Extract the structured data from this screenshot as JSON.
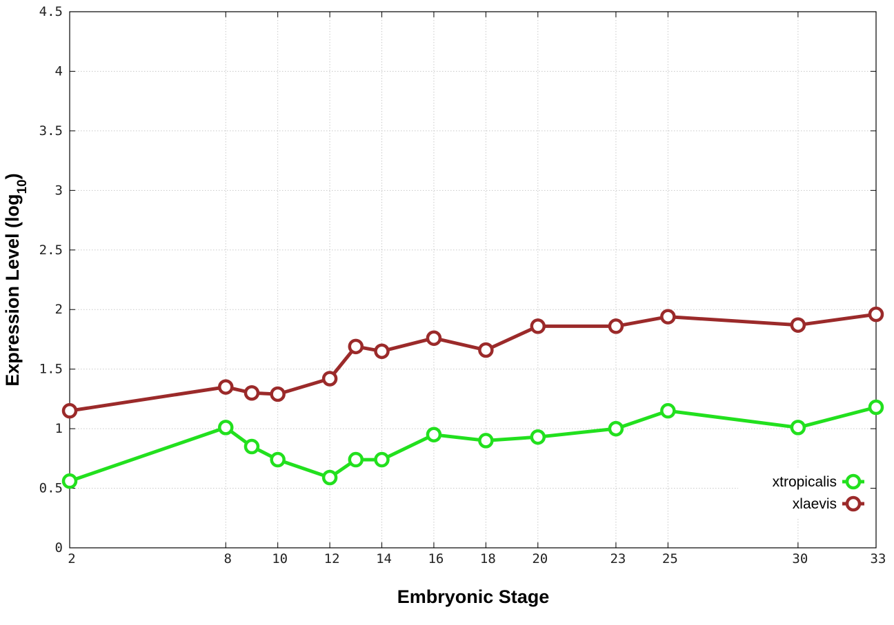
{
  "chart_data": {
    "type": "line",
    "xlabel": "Embryonic Stage",
    "ylabel": {
      "main": "Expression Level (log",
      "sub": "10",
      "close": ")"
    },
    "xlim": [
      2,
      33
    ],
    "ylim": [
      0,
      4.5
    ],
    "x_ticks": [
      2,
      8,
      10,
      12,
      14,
      16,
      18,
      20,
      23,
      25,
      30,
      33
    ],
    "x_tick_labels": [
      "2",
      "8",
      "10",
      "12",
      "14",
      "16",
      "18",
      "20",
      "23",
      "25",
      "30",
      "33"
    ],
    "y_ticks": [
      0,
      0.5,
      1,
      1.5,
      2,
      2.5,
      3,
      3.5,
      4,
      4.5
    ],
    "y_tick_labels": [
      "0",
      "0.5",
      "1",
      "1.5",
      "2",
      "2.5",
      "3",
      "3.5",
      "4",
      "4.5"
    ],
    "grid": true,
    "legend_position": "bottom-right",
    "series": [
      {
        "name": "xtropicalis",
        "color": "#22e01e",
        "x": [
          2,
          8,
          9,
          10,
          12,
          13,
          14,
          16,
          18,
          20,
          23,
          25,
          30,
          33
        ],
        "y": [
          0.56,
          1.01,
          0.85,
          0.74,
          0.59,
          0.74,
          0.74,
          0.95,
          0.9,
          0.93,
          1.0,
          1.15,
          1.01,
          1.18
        ]
      },
      {
        "name": "xlaevis",
        "color": "#9b2a2a",
        "x": [
          2,
          8,
          9,
          10,
          12,
          13,
          14,
          16,
          18,
          20,
          23,
          25,
          30,
          33
        ],
        "y": [
          1.15,
          1.35,
          1.3,
          1.29,
          1.42,
          1.69,
          1.65,
          1.76,
          1.66,
          1.86,
          1.86,
          1.94,
          1.87,
          1.96
        ]
      }
    ]
  }
}
